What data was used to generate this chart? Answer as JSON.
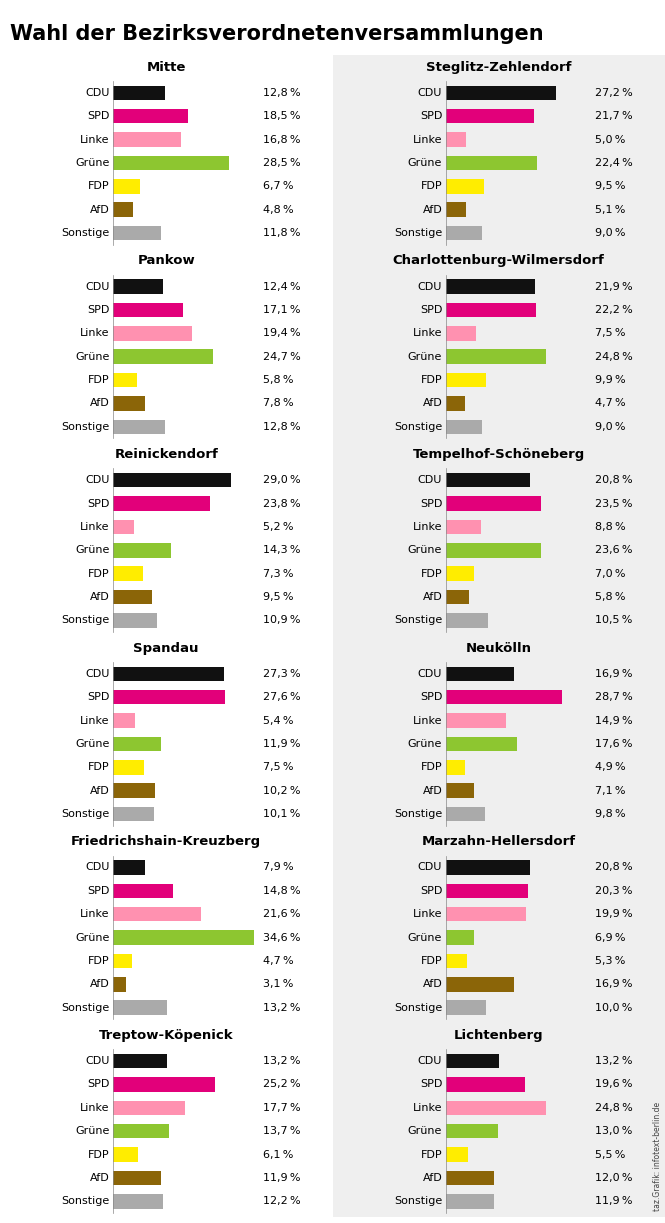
{
  "title": "Wahl der Bezirksverordnetenversammlungen",
  "parties": [
    "CDU",
    "SPD",
    "Linke",
    "Grüne",
    "FDP",
    "AfD",
    "Sonstige"
  ],
  "party_colors": [
    "#111111",
    "#E2007A",
    "#FF91B0",
    "#8DC630",
    "#FFED00",
    "#8B6508",
    "#AAAAAA"
  ],
  "districts": [
    {
      "name": "Mitte",
      "values": [
        12.8,
        18.5,
        16.8,
        28.5,
        6.7,
        4.8,
        11.8
      ]
    },
    {
      "name": "Steglitz-Zehlendorf",
      "values": [
        27.2,
        21.7,
        5.0,
        22.4,
        9.5,
        5.1,
        9.0
      ]
    },
    {
      "name": "Pankow",
      "values": [
        12.4,
        17.1,
        19.4,
        24.7,
        5.8,
        7.8,
        12.8
      ]
    },
    {
      "name": "Charlottenburg-Wilmersdorf",
      "values": [
        21.9,
        22.2,
        7.5,
        24.8,
        9.9,
        4.7,
        9.0
      ]
    },
    {
      "name": "Reinickendorf",
      "values": [
        29.0,
        23.8,
        5.2,
        14.3,
        7.3,
        9.5,
        10.9
      ]
    },
    {
      "name": "Tempelhof-Schöneberg",
      "values": [
        20.8,
        23.5,
        8.8,
        23.6,
        7.0,
        5.8,
        10.5
      ]
    },
    {
      "name": "Spandau",
      "values": [
        27.3,
        27.6,
        5.4,
        11.9,
        7.5,
        10.2,
        10.1
      ]
    },
    {
      "name": "Neukölln",
      "values": [
        16.9,
        28.7,
        14.9,
        17.6,
        4.9,
        7.1,
        9.8
      ]
    },
    {
      "name": "Friedrichshain-Kreuzberg",
      "values": [
        7.9,
        14.8,
        21.6,
        34.6,
        4.7,
        3.1,
        13.2
      ]
    },
    {
      "name": "Marzahn-Hellersdorf",
      "values": [
        20.8,
        20.3,
        19.9,
        6.9,
        5.3,
        16.9,
        10.0
      ]
    },
    {
      "name": "Treptow-Köpenick",
      "values": [
        13.2,
        25.2,
        17.7,
        13.7,
        6.1,
        11.9,
        12.2
      ]
    },
    {
      "name": "Lichtenberg",
      "values": [
        13.2,
        19.6,
        24.8,
        13.0,
        5.5,
        12.0,
        11.9
      ]
    }
  ],
  "bg_color_left": "#FFFFFF",
  "bg_color_right": "#EFEFEF",
  "title_fontsize": 15,
  "district_fontsize": 9.5,
  "label_fontsize": 8,
  "value_fontsize": 8,
  "max_val": 36.0
}
